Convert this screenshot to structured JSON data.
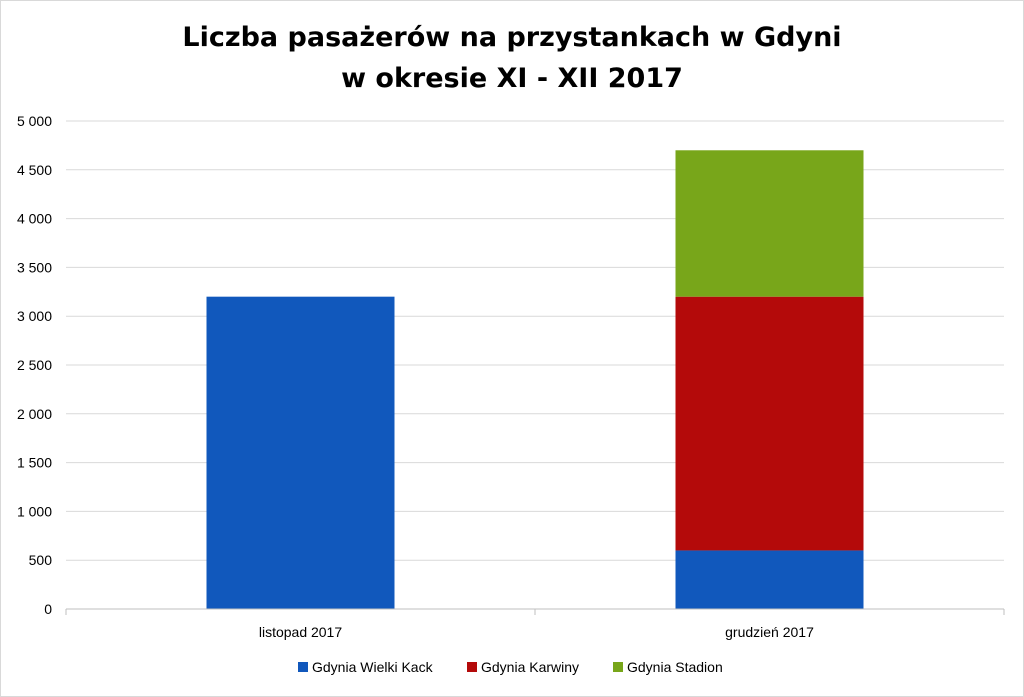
{
  "chart_data": {
    "type": "bar",
    "stacked": true,
    "title": [
      "Liczba pasażerów na przystankach w Gdyni",
      "w okresie XI - XII 2017"
    ],
    "categories": [
      "listopad 2017",
      "grudzień 2017"
    ],
    "series": [
      {
        "name": "Gdynia Wielki Kack",
        "values": [
          3200,
          600
        ],
        "color": "#1158BC"
      },
      {
        "name": "Gdynia Karwiny",
        "values": [
          0,
          2600
        ],
        "color": "#B40A0A"
      },
      {
        "name": "Gdynia Stadion",
        "values": [
          0,
          1500
        ],
        "color": "#78A61A"
      }
    ],
    "ylim": [
      0,
      5000
    ],
    "yticks": [
      0,
      500,
      1000,
      1500,
      2000,
      2500,
      3000,
      3500,
      4000,
      4500,
      5000
    ],
    "ytick_labels": [
      "0",
      "500",
      "1 000",
      "1 500",
      "2 000",
      "2 500",
      "3 000",
      "3 500",
      "4 000",
      "4 500",
      "5 000"
    ],
    "grid": true,
    "legend": "bottom"
  }
}
